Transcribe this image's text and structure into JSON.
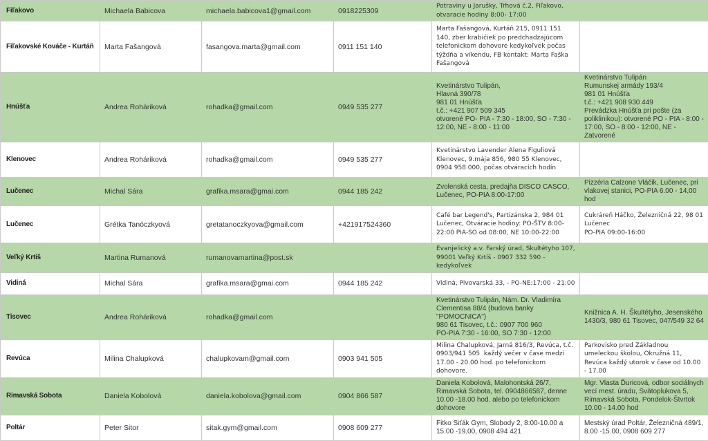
{
  "colors": {
    "row_green": "#b6d7a8",
    "row_white": "#ffffff",
    "border": "#c9c9c9",
    "text": "#333333"
  },
  "table": {
    "rows": [
      {
        "town": "Fiľakovo",
        "name": "Michaela Babicova",
        "email": "michaela.babicova1@gmail.com",
        "phone": "0918225309",
        "place1": "Potraviny u Jarušky, Trhová č.2, Fiľakovo, otvaracie hodiny 8:00- 17:00",
        "place2": ""
      },
      {
        "town": "Fiľakovské Kováče - Kurtáň",
        "name": "Marta Fašangová",
        "email": "fasangova.marta@gmail.com",
        "phone": "0911 151 140",
        "place1": "Marta Fašangová, Kurtáň 215, 0911 151 140, zber krabičiek po predchadzajúcom telefonickom dohovore kedykoľvek počas týždňa a víkendu, FB kontakt: Marta Faška Fašangová",
        "place2": ""
      },
      {
        "town": "Hnúšťa",
        "name": "Andrea Roháriková",
        "email": "rohadka@gmail.com",
        "phone": "0949 535 277",
        "place1": "Kvetinárstvo Tulipán,\nHlavná 390/78\n981 01 Hnúšťa\nt.č.: +421 907 509 345\notvorené PO- PIA - 7:30 - 18:00, SO - 7:30 - 12:00, NE - 8:00 - 11:00",
        "place2": "Kvetinárstvo Tulipán\nRumunskej armády 193/4\n981 01 Hnúšťa\nt.č.: +421 908 930 449\nPrevádzka Hnúšťa pri pošte (za poliklinikou): otvorené PO - PIA - 8:00 - 17:00, SO - 8:00 - 12:00, NE - Zatvorené"
      },
      {
        "town": "Klenovec",
        "name": "Andrea Roháriková",
        "email": "rohadka@gmail.com",
        "phone": "0949 535 277",
        "place1": "Kvetinárstvo Lavender Alena Figuliová Klenovec, 9.mája 856, 980 55 Klenovec, 0904 958 000, počas otváracích hodín",
        "place2": ""
      },
      {
        "town": "Lučenec",
        "name": "Michal Sára",
        "email": "grafika.msara@gmai.com",
        "phone": "0944 185 242",
        "place1": "Zvolenská cesta, predajňa DISCO CASCO, Lučenec, PO-PIA 8:00-17:00",
        "place2": "Pizzéria Calzone Vláčik, Lučenec, pri vlakovej stanici, PO-PIA 6.00 - 14,00 hod"
      },
      {
        "town": "Lučenec",
        "name": "Grétka Tanóczkyová",
        "email": "gretatanoczkyova@gmail.com",
        "phone": "+421917524360",
        "place1": "Café bar Legend's, Partizánska 2, 984 01 Lučenec, Otváracie hodiny: PO-ŠTV 8:00-22:00 PIA-SO od 08:00, NE 10:00-22:00",
        "place2": "Cukráreň Háčko, Železničná 22, 98 01 Lučenec\nPO-PIA 09:00-16:00"
      },
      {
        "town": "Veľký Krtíš",
        "name": "Martina Rumanová",
        "email": "rumanovamartina@post.sk",
        "phone": "",
        "place1": "Evanjelický a.v. Farský úrad, Skultétyho 107, 99001 Veľký Krtíš - 0907 332 590 - kedykoľvek",
        "place2": ""
      },
      {
        "town": "Vidiná",
        "name": "Michal Sára",
        "email": "grafika.msara@gmai.com",
        "phone": "0944 185 242",
        "place1": "Vidiná, Pivovarská 33, - PO-NE:17:00 - 21:00",
        "place2": ""
      },
      {
        "town": "Tisovec",
        "name": "Andrea Roháriková",
        "email": "rohadka@gmail.com",
        "phone": "",
        "place1": "Kvetinárstvo Tulipán, Nám. Dr. Vladimíra Clementisa 88/4 (budova banky\n\"POMOCNICA\")\n980 61 Tisovec, t.č.: 0907 700 960\nPO-PIA 7:30 - 16:00, SO 7:30 - 12:00",
        "place2": "Knižnica A. H. Škultétyho, Jesenského 1430/3, 980 61 Tisovec, 047/549 32 64"
      },
      {
        "town": "Revúca",
        "name": "Milina Chalupková",
        "email": "chalupkovam@gmail.com",
        "phone": "0903 941 505",
        "place1": "Milina Chalupková, Jarná 816/3, Revúca, t.č. 0903/941 505  každý večer v čase medzi 17.00 - 20.00 hod. po telefonickom dohovore.",
        "place2": "Parkovisko pred Základnou umeleckou školou, Okružná 11, Revúca každý utorok v čase od 10.00 - 17.00"
      },
      {
        "town": "Rimavská Sobota",
        "name": "Daniela Kobolová",
        "email": "daniela.kobolova@gmail.com",
        "phone": "0904 866 587",
        "place1": "Daniela Kobolová, Malohontská 26/7, Rimavská Sobota, tel. 0904866587, denne 10.00 -18.00 hod. alebo po telefonickom dohovore",
        "place2": "Mgr. Vlasta Ďuricová, odbor sociálnych vecí mest. úradu, Svätoplukova 5, Rimavská Sobota, Pondelok-Štvrtok 10.00 - 14.00 hod"
      },
      {
        "town": "Poltár",
        "name": "Peter Sitor",
        "email": "sitak.gym@gmail.com",
        "phone": "0908 609 277",
        "place1": "Fitko Siťák Gym, Slobody 2, 8:00-10.00 a 15.00 -19.00, 0908 494 421",
        "place2": "Mestský úrad Poltár, Železničná 489/1, 8.00 -15.00, 0908 609 277"
      }
    ]
  }
}
